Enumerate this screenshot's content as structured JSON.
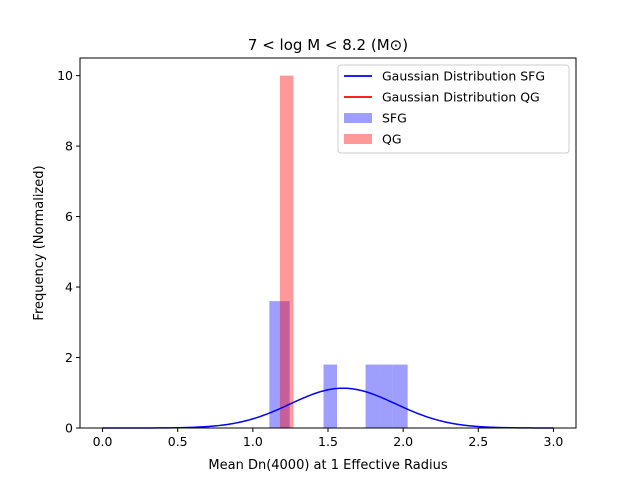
{
  "chart_data": {
    "type": "bar",
    "title": "7 < log M < 8.2 (M⊙)",
    "xlabel": "Mean Dn(4000) at 1 Effective Radius",
    "ylabel": "Frequency (Normalized)",
    "xlim": [
      -0.15,
      3.15
    ],
    "ylim": [
      0,
      10.5
    ],
    "xticks": [
      0.0,
      0.5,
      1.0,
      1.5,
      2.0,
      2.5,
      3.0
    ],
    "xtick_labels": [
      "0.0",
      "0.5",
      "1.0",
      "1.5",
      "2.0",
      "2.5",
      "3.0"
    ],
    "yticks": [
      0,
      2,
      4,
      6,
      8,
      10
    ],
    "ytick_labels": [
      "0",
      "2",
      "4",
      "6",
      "8",
      "10"
    ],
    "legend_position": "top-right",
    "histograms": [
      {
        "name": "SFG",
        "color": "#0000ff",
        "opacity": 0.38,
        "bins": [
          {
            "x0": 1.11,
            "x1": 1.2,
            "height": 3.6
          },
          {
            "x0": 1.2,
            "x1": 1.245,
            "height": 3.6
          },
          {
            "x0": 1.47,
            "x1": 1.56,
            "height": 1.8
          },
          {
            "x0": 1.75,
            "x1": 1.84,
            "height": 1.8
          },
          {
            "x0": 1.84,
            "x1": 1.93,
            "height": 1.8
          },
          {
            "x0": 1.93,
            "x1": 2.03,
            "height": 1.8
          }
        ]
      },
      {
        "name": "QG",
        "color": "#ff0000",
        "opacity": 0.4,
        "bins": [
          {
            "x0": 1.18,
            "x1": 1.27,
            "height": 10.0
          }
        ]
      }
    ],
    "series": [
      {
        "name": "Gaussian Distribution SFG",
        "color": "#0000ff",
        "type": "line",
        "gaussian": {
          "mean": 1.6,
          "std": 0.35,
          "amplitude": 1.13
        },
        "x_range": [
          0,
          3
        ]
      },
      {
        "name": "Gaussian Distribution QG",
        "color": "#ff0000",
        "type": "line",
        "gaussian": null,
        "x_range": [
          0,
          3
        ]
      }
    ],
    "legend": [
      {
        "label": "Gaussian Distribution SFG",
        "kind": "line",
        "color": "#0000ff"
      },
      {
        "label": "Gaussian Distribution QG",
        "kind": "line",
        "color": "#ff0000"
      },
      {
        "label": "SFG",
        "kind": "patch",
        "color": "#0000ff",
        "opacity": 0.38
      },
      {
        "label": "QG",
        "kind": "patch",
        "color": "#ff0000",
        "opacity": 0.4
      }
    ]
  }
}
